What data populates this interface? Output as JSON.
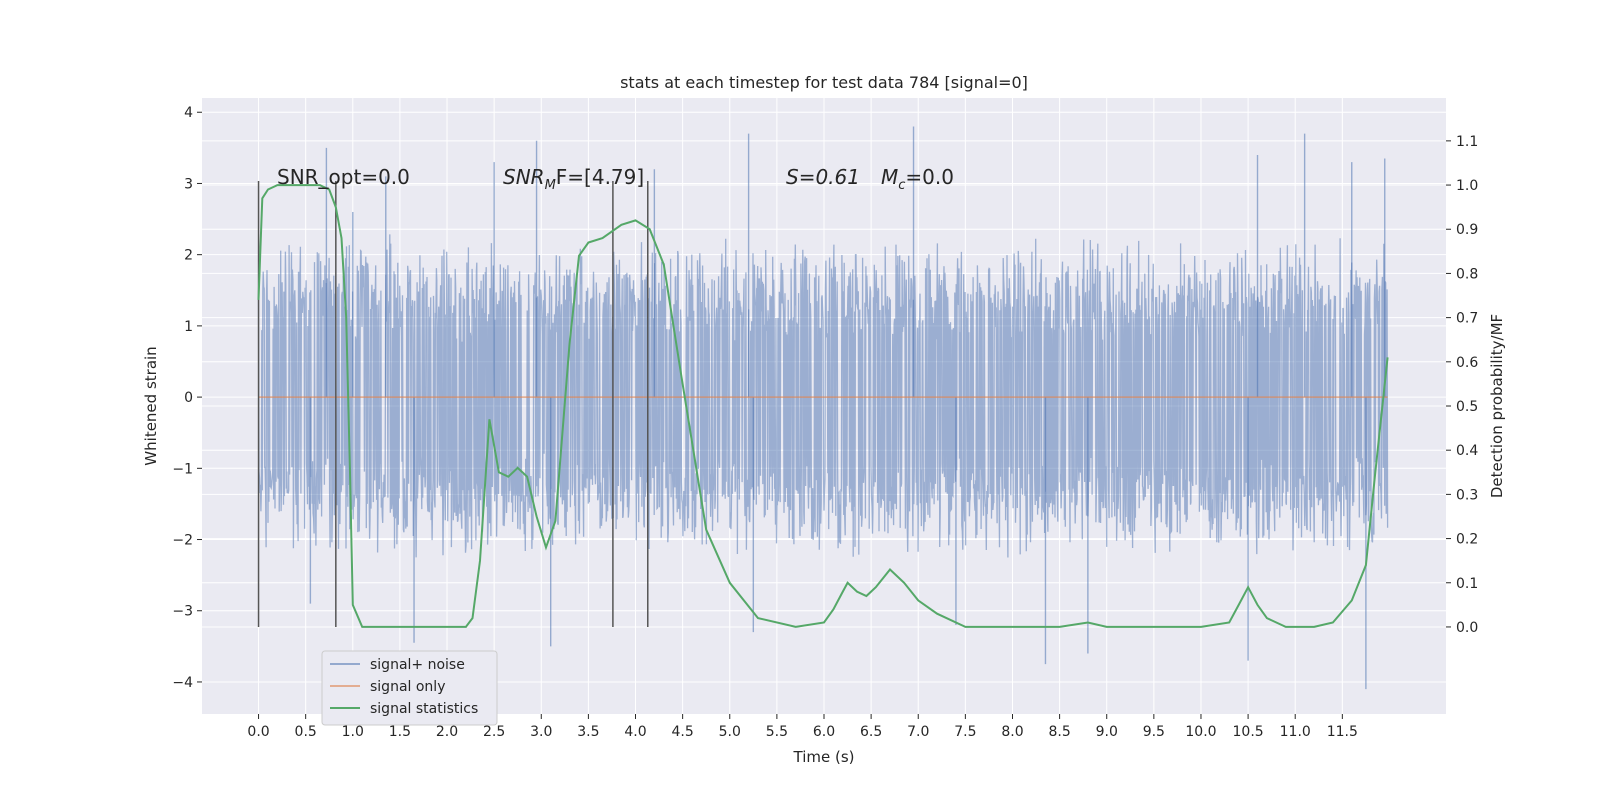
{
  "chart_data": {
    "type": "line",
    "title": "stats at each timestep for test data 784 [signal=0]",
    "xlabel": "Time (s)",
    "ylabel_left": "Whitened strain",
    "ylabel_right": "Detection probability/MF",
    "x_ticks": [
      "0.0",
      "0.5",
      "1.0",
      "1.5",
      "2.0",
      "2.5",
      "3.0",
      "3.5",
      "4.0",
      "4.5",
      "5.0",
      "5.5",
      "6.0",
      "6.5",
      "7.0",
      "7.5",
      "8.0",
      "8.5",
      "9.0",
      "9.5",
      "10.0",
      "10.5",
      "11.0",
      "11.5"
    ],
    "y_left_ticks": [
      "4",
      "3",
      "2",
      "1",
      "0",
      "−1",
      "−2",
      "−3",
      "−4"
    ],
    "y_right_ticks": [
      "1.1",
      "1.0",
      "0.9",
      "0.8",
      "0.7",
      "0.6",
      "0.5",
      "0.4",
      "0.3",
      "0.2",
      "0.1",
      "0.0"
    ],
    "xlim": [
      -0.6,
      12.6
    ],
    "ylim_left": [
      -4.45,
      4.2
    ],
    "ylim_right": [
      -0.197,
      1.197
    ],
    "grid": true,
    "legend_position": "lower-left",
    "colors": {
      "background": "#eaeaf2",
      "grid": "#ffffff",
      "noise": "#4c72b0",
      "signal": "#dd8452",
      "statistics": "#55a868",
      "vlines": "#555555"
    },
    "annotations": {
      "snr_opt": "SNR_opt=0.0",
      "snr_mf_base": "SNR",
      "snr_mf_sub": "M",
      "snr_mf_rest": "F=[4.79]",
      "s_value": "S=0.61",
      "mc_base": "M",
      "mc_sub": "c",
      "mc_rest": "=0.0"
    },
    "vertical_lines_x": [
      0.0,
      0.82,
      3.76,
      4.13
    ],
    "series": [
      {
        "name": "signal+ noise",
        "axis": "left",
        "time_range": [
          0.0,
          11.98
        ],
        "envelope_typical": 2.3,
        "outliers": [
          {
            "x": 0.72,
            "y": 3.5
          },
          {
            "x": 1.0,
            "y": 2.6
          },
          {
            "x": 1.35,
            "y": 3.1
          },
          {
            "x": 1.65,
            "y": -3.45
          },
          {
            "x": 2.5,
            "y": 3.3
          },
          {
            "x": 2.95,
            "y": 3.6
          },
          {
            "x": 3.1,
            "y": -3.5
          },
          {
            "x": 5.2,
            "y": 3.7
          },
          {
            "x": 5.25,
            "y": -3.3
          },
          {
            "x": 6.95,
            "y": 3.8
          },
          {
            "x": 8.35,
            "y": -3.75
          },
          {
            "x": 8.8,
            "y": -3.6
          },
          {
            "x": 10.5,
            "y": -3.7
          },
          {
            "x": 10.6,
            "y": 3.4
          },
          {
            "x": 11.1,
            "y": 3.7
          },
          {
            "x": 11.75,
            "y": -4.1
          },
          {
            "x": 11.6,
            "y": 3.3
          },
          {
            "x": 11.95,
            "y": 3.35
          },
          {
            "x": 0.55,
            "y": -2.9
          },
          {
            "x": 4.2,
            "y": 3.2
          },
          {
            "x": 7.4,
            "y": -3.2
          }
        ]
      },
      {
        "name": "signal only",
        "axis": "left",
        "x": [
          0.0,
          11.98
        ],
        "y": [
          0.0,
          0.0
        ]
      },
      {
        "name": "signal statistics",
        "axis": "right",
        "x": [
          0.0,
          0.04,
          0.1,
          0.2,
          0.35,
          0.5,
          0.65,
          0.75,
          0.82,
          0.88,
          0.93,
          0.97,
          1.0,
          1.1,
          1.5,
          2.0,
          2.2,
          2.27,
          2.35,
          2.45,
          2.55,
          2.65,
          2.75,
          2.85,
          2.95,
          3.05,
          3.15,
          3.3,
          3.4,
          3.5,
          3.65,
          3.85,
          4.0,
          4.15,
          4.3,
          4.5,
          4.75,
          5.0,
          5.3,
          5.7,
          6.0,
          6.1,
          6.2,
          6.25,
          6.35,
          6.45,
          6.55,
          6.7,
          6.85,
          7.0,
          7.2,
          7.5,
          8.0,
          8.5,
          8.8,
          9.0,
          9.5,
          10.0,
          10.3,
          10.4,
          10.5,
          10.6,
          10.7,
          10.9,
          11.2,
          11.4,
          11.6,
          11.75,
          11.85,
          11.98
        ],
        "y": [
          0.74,
          0.97,
          0.99,
          1.0,
          1.0,
          1.0,
          1.0,
          0.99,
          0.95,
          0.88,
          0.7,
          0.35,
          0.05,
          0.0,
          0.0,
          0.0,
          0.0,
          0.02,
          0.15,
          0.47,
          0.35,
          0.34,
          0.36,
          0.34,
          0.25,
          0.18,
          0.24,
          0.64,
          0.84,
          0.87,
          0.88,
          0.91,
          0.92,
          0.9,
          0.82,
          0.55,
          0.22,
          0.1,
          0.02,
          0.0,
          0.01,
          0.04,
          0.08,
          0.1,
          0.08,
          0.07,
          0.09,
          0.13,
          0.1,
          0.06,
          0.03,
          0.0,
          0.0,
          0.0,
          0.01,
          0.0,
          0.0,
          0.0,
          0.01,
          0.05,
          0.09,
          0.05,
          0.02,
          0.0,
          0.0,
          0.01,
          0.06,
          0.14,
          0.35,
          0.61
        ]
      }
    ]
  }
}
